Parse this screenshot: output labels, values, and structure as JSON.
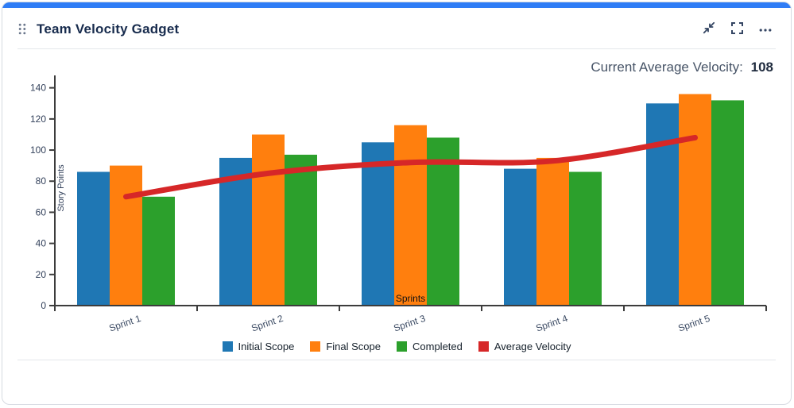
{
  "header": {
    "title": "Team Velocity Gadget",
    "icons": [
      "drag-handle-icon",
      "minimize-icon",
      "fullscreen-icon",
      "more-options-icon"
    ]
  },
  "summary": {
    "label": "Current Average Velocity:",
    "value": "108"
  },
  "colors": {
    "accent": "#2f7df6",
    "title": "#172b4d",
    "header_icon": "#344563"
  },
  "chart_data": {
    "type": "bar",
    "categories": [
      "Sprint 1",
      "Sprint 2",
      "Sprint 3",
      "Sprint 4",
      "Sprint 5"
    ],
    "series": [
      {
        "name": "Initial Scope",
        "type": "bar",
        "color": "#1f77b4",
        "values": [
          86,
          95,
          105,
          88,
          130
        ]
      },
      {
        "name": "Final Scope",
        "type": "bar",
        "color": "#ff7f0e",
        "values": [
          90,
          110,
          116,
          95,
          136
        ]
      },
      {
        "name": "Completed",
        "type": "bar",
        "color": "#2ca02c",
        "values": [
          70,
          97,
          108,
          86,
          132
        ]
      },
      {
        "name": "Average Velocity",
        "type": "line",
        "color": "#d62728",
        "values": [
          70,
          85,
          92,
          93,
          108
        ]
      }
    ],
    "xlabel": "Sprints",
    "ylabel": "Story Points",
    "ylim": [
      0,
      148
    ],
    "yticks": [
      0,
      20,
      40,
      60,
      80,
      100,
      120,
      140
    ],
    "grid": false,
    "legend_position": "bottom"
  }
}
